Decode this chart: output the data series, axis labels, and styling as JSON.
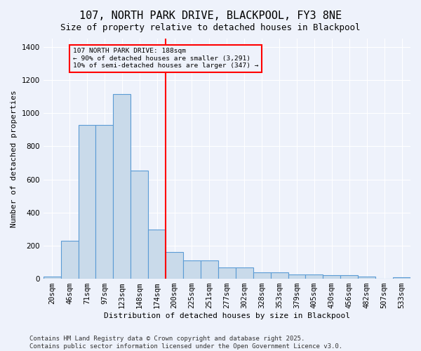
{
  "title": "107, NORTH PARK DRIVE, BLACKPOOL, FY3 8NE",
  "subtitle": "Size of property relative to detached houses in Blackpool",
  "xlabel": "Distribution of detached houses by size in Blackpool",
  "ylabel": "Number of detached properties",
  "categories": [
    "20sqm",
    "46sqm",
    "71sqm",
    "97sqm",
    "123sqm",
    "148sqm",
    "174sqm",
    "200sqm",
    "225sqm",
    "251sqm",
    "277sqm",
    "302sqm",
    "328sqm",
    "353sqm",
    "379sqm",
    "405sqm",
    "430sqm",
    "456sqm",
    "482sqm",
    "507sqm",
    "533sqm"
  ],
  "bar_heights": [
    15,
    230,
    930,
    930,
    1115,
    655,
    295,
    160,
    110,
    110,
    70,
    70,
    40,
    40,
    25,
    25,
    20,
    20,
    15,
    0,
    10
  ],
  "bar_color": "#c9daea",
  "bar_edge_color": "#5b9bd5",
  "vline_color": "red",
  "annotation_text": "107 NORTH PARK DRIVE: 188sqm\n← 90% of detached houses are smaller (3,291)\n10% of semi-detached houses are larger (347) →",
  "annotation_box_color": "red",
  "ylim": [
    0,
    1450
  ],
  "yticks": [
    0,
    200,
    400,
    600,
    800,
    1000,
    1200,
    1400
  ],
  "footer": "Contains HM Land Registry data © Crown copyright and database right 2025.\nContains public sector information licensed under the Open Government Licence v3.0.",
  "bg_color": "#eef2fb",
  "grid_color": "#ffffff",
  "title_fontsize": 11,
  "subtitle_fontsize": 9,
  "axis_label_fontsize": 8,
  "tick_fontsize": 7.5,
  "footer_fontsize": 6.5
}
